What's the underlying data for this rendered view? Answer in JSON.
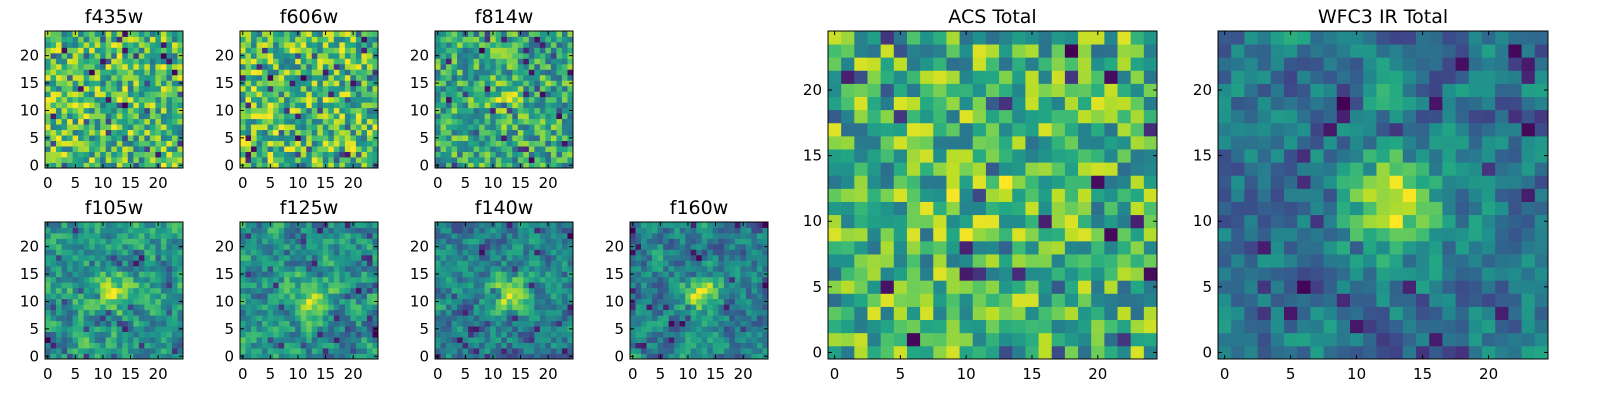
{
  "figure": {
    "description_colormap": "viridis"
  },
  "chart_data": [
    {
      "type": "heatmap",
      "title": "f435w",
      "grid": [
        25,
        25
      ],
      "xlim": [
        0,
        24
      ],
      "ylim": [
        0,
        24
      ],
      "xticks": [
        0,
        5,
        10,
        15,
        20
      ],
      "yticks": [
        0,
        5,
        10,
        15,
        20
      ],
      "colormap": "viridis",
      "seed": 11,
      "smooth": 0,
      "blob": 0
    },
    {
      "type": "heatmap",
      "title": "f606w",
      "grid": [
        25,
        25
      ],
      "xlim": [
        0,
        24
      ],
      "ylim": [
        0,
        24
      ],
      "xticks": [
        0,
        5,
        10,
        15,
        20
      ],
      "yticks": [
        0,
        5,
        10,
        15,
        20
      ],
      "colormap": "viridis",
      "seed": 23,
      "smooth": 0,
      "blob": 0
    },
    {
      "type": "heatmap",
      "title": "f814w",
      "grid": [
        25,
        25
      ],
      "xlim": [
        0,
        24
      ],
      "ylim": [
        0,
        24
      ],
      "xticks": [
        0,
        5,
        10,
        15,
        20
      ],
      "yticks": [
        0,
        5,
        10,
        15,
        20
      ],
      "colormap": "viridis",
      "seed": 37,
      "smooth": 0,
      "blob": 0.15
    },
    {
      "type": "heatmap",
      "title": "f105w",
      "grid": [
        25,
        25
      ],
      "xlim": [
        0,
        24
      ],
      "ylim": [
        0,
        24
      ],
      "xticks": [
        0,
        5,
        10,
        15,
        20
      ],
      "yticks": [
        0,
        5,
        10,
        15,
        20
      ],
      "colormap": "viridis",
      "seed": 41,
      "smooth": 1,
      "blob": 0.2
    },
    {
      "type": "heatmap",
      "title": "f125w",
      "grid": [
        25,
        25
      ],
      "xlim": [
        0,
        24
      ],
      "ylim": [
        0,
        24
      ],
      "xticks": [
        0,
        5,
        10,
        15,
        20
      ],
      "yticks": [
        0,
        5,
        10,
        15,
        20
      ],
      "colormap": "viridis",
      "seed": 53,
      "smooth": 1,
      "blob": 0.25
    },
    {
      "type": "heatmap",
      "title": "f140w",
      "grid": [
        25,
        25
      ],
      "xlim": [
        0,
        24
      ],
      "ylim": [
        0,
        24
      ],
      "xticks": [
        0,
        5,
        10,
        15,
        20
      ],
      "yticks": [
        0,
        5,
        10,
        15,
        20
      ],
      "colormap": "viridis",
      "seed": 67,
      "smooth": 1,
      "blob": 0.35
    },
    {
      "type": "heatmap",
      "title": "f160w",
      "grid": [
        25,
        25
      ],
      "xlim": [
        0,
        24
      ],
      "ylim": [
        0,
        24
      ],
      "xticks": [
        0,
        5,
        10,
        15,
        20
      ],
      "yticks": [
        0,
        5,
        10,
        15,
        20
      ],
      "colormap": "viridis",
      "seed": 79,
      "smooth": 1,
      "blob": 0.35
    },
    {
      "type": "heatmap",
      "title": "ACS Total",
      "grid": [
        25,
        25
      ],
      "xlim": [
        0,
        24
      ],
      "ylim": [
        0,
        24
      ],
      "xticks": [
        0,
        5,
        10,
        15,
        20
      ],
      "yticks": [
        0,
        5,
        10,
        15,
        20
      ],
      "colormap": "viridis",
      "seed": 97,
      "smooth": 0,
      "blob": 0.1
    },
    {
      "type": "heatmap",
      "title": "WFC3 IR Total",
      "grid": [
        25,
        25
      ],
      "xlim": [
        0,
        24
      ],
      "ylim": [
        0,
        24
      ],
      "xticks": [
        0,
        5,
        10,
        15,
        20
      ],
      "yticks": [
        0,
        5,
        10,
        15,
        20
      ],
      "colormap": "viridis",
      "seed": 113,
      "smooth": 1,
      "blob": 0.45
    }
  ]
}
